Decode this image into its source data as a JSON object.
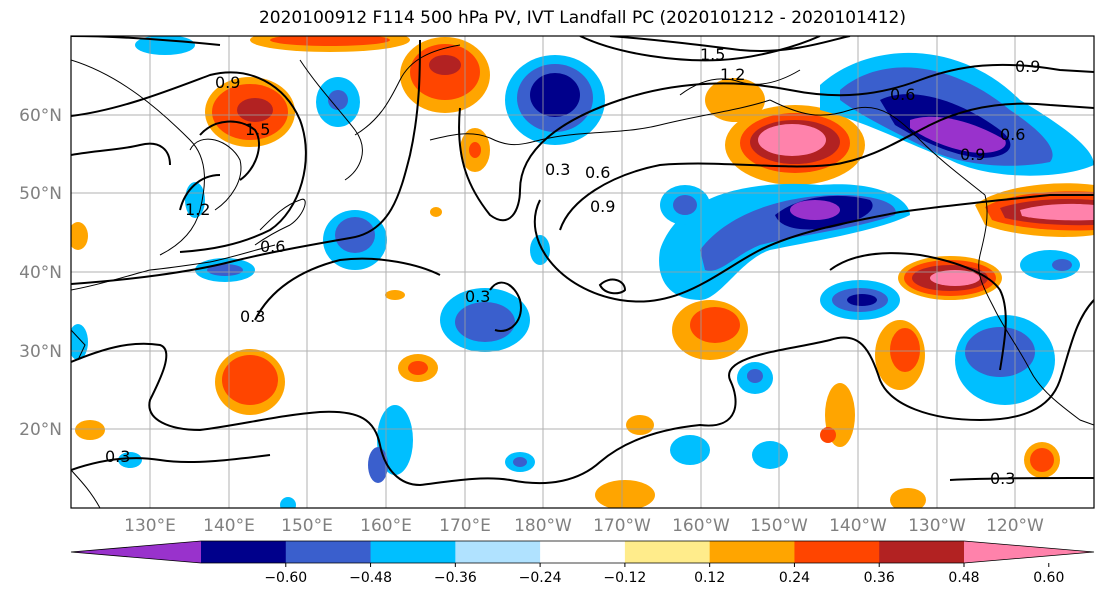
{
  "title": "2020100912 F114 500 hPa PV, IVT Landfall PC (2020101212 - 2020101412)",
  "map": {
    "projection": "PlateCarree",
    "extent_lon": [
      120,
      250
    ],
    "extent_lat": [
      10,
      70
    ],
    "lon_labels": [
      "130°E",
      "140°E",
      "150°E",
      "160°E",
      "170°E",
      "180°W",
      "170°W",
      "160°W",
      "150°W",
      "140°W",
      "130°W",
      "120°W"
    ],
    "lat_labels": [
      "60°N",
      "50°N",
      "40°N",
      "30°N",
      "20°N"
    ],
    "grid": true,
    "contour_labels": [
      "0.9",
      "1.5",
      "1.2",
      "0.6",
      "0.9",
      "0.9",
      "0.6",
      "0.3",
      "0.6",
      "0.9",
      "0.3",
      "0.3",
      "0.3",
      "0.3",
      "0.6",
      "1.5",
      "1.2"
    ],
    "colors": {
      "land_outline": "#000000",
      "gridline": "#a0a0a0",
      "tick_label": "#808080"
    }
  },
  "colorbar": {
    "ticks": [
      "−0.60",
      "−0.48",
      "−0.36",
      "−0.24",
      "−0.12",
      "0.12",
      "0.24",
      "0.36",
      "0.48",
      "0.60"
    ],
    "colors": [
      "#9932cc",
      "#00008b",
      "#3a5fcd",
      "#00bfff",
      "#b0e2ff",
      "#ffffff",
      "#ffec8b",
      "#ffa500",
      "#ff4500",
      "#b22222",
      "#ff82ab"
    ]
  }
}
